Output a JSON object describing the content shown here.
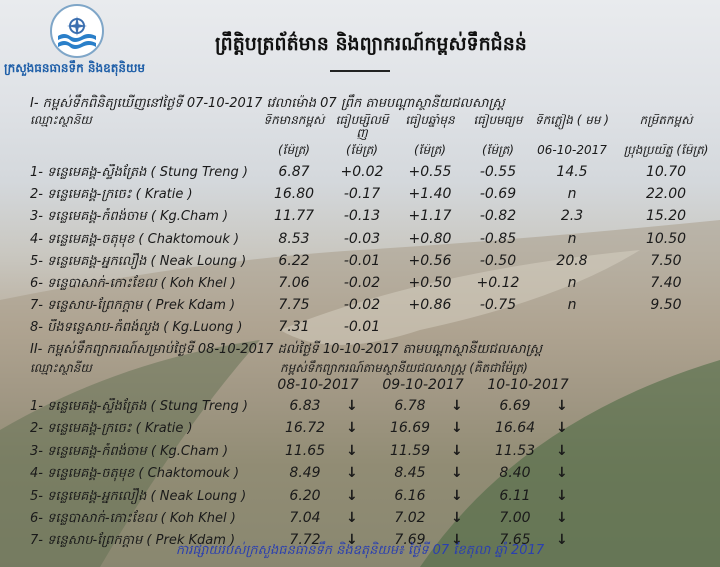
{
  "header": {
    "ministry": "ក្រសួងធនធានទឹក និងឧតុនិយម",
    "title": "ព្រឹត្តិបត្រព័ត៌មាន និងព្យាករណ៍កម្ពស់ទឹកជំនន់",
    "logo_icon": "ministry-water-logo"
  },
  "observed": {
    "heading": "I- កម្ពស់ទឹកពិនិត្យឃើញនៅថ្ងៃទី 07-10-2017 វេលាម៉ោង 07 ព្រឹក តាមបណ្តាស្ថានីយជលសាស្ត្រ",
    "columns": [
      {
        "label": "ឈ្មោះស្ថានីយ",
        "sub": ""
      },
      {
        "label": "ទឹកមានកម្ពស់",
        "sub": "(ម៉ែត្រ)"
      },
      {
        "label": "ធៀបម្សិលមិញ",
        "sub": "(ម៉ែត្រ)"
      },
      {
        "label": "ធៀបឆ្នាំមុន",
        "sub": "(ម៉ែត្រ)"
      },
      {
        "label": "ធៀបមធ្យម",
        "sub": "(ម៉ែត្រ)"
      },
      {
        "label": "ទឹកភ្លៀង ( មម )",
        "sub": "06-10-2017"
      },
      {
        "label": "កម្រិតកម្ពស់",
        "sub": "ប្រុងប្រយ័ត្ន (ម៉ែត្រ)"
      }
    ],
    "rows": [
      {
        "station": "1- ទន្លេមេគង្គ-ស្ទឹងត្រែង ( Stung Treng )",
        "level": "6.87",
        "vs_yesterday": "+0.02",
        "vs_last_year": "+0.55",
        "vs_average": "-0.55",
        "rainfall": "14.5",
        "alert": "10.70"
      },
      {
        "station": "2- ទន្លេមេគង្គ-ក្រចេះ ( Kratie )",
        "level": "16.80",
        "vs_yesterday": "-0.17",
        "vs_last_year": "+1.40",
        "vs_average": "-0.69",
        "rainfall": "n",
        "alert": "22.00"
      },
      {
        "station": "3- ទន្លេមេគង្គ-កំពង់ចាម ( Kg.Cham )",
        "level": "11.77",
        "vs_yesterday": "-0.13",
        "vs_last_year": "+1.17",
        "vs_average": "-0.82",
        "rainfall": "2.3",
        "alert": "15.20"
      },
      {
        "station": "4- ទន្លេមេគង្គ-ចតុមុខ ( Chaktomouk )",
        "level": "8.53",
        "vs_yesterday": "-0.03",
        "vs_last_year": "+0.80",
        "vs_average": "-0.85",
        "rainfall": "n",
        "alert": "10.50"
      },
      {
        "station": "5- ទន្លេមេគង្គ-អ្នកលឿង ( Neak Loung )",
        "level": "6.22",
        "vs_yesterday": "-0.01",
        "vs_last_year": "+0.56",
        "vs_average": "-0.50",
        "rainfall": "20.8",
        "alert": "7.50"
      },
      {
        "station": "6- ទន្លេបាសាក់-កោះខែល ( Koh Khel )",
        "level": "7.06",
        "vs_yesterday": "-0.02",
        "vs_last_year": "+0.50",
        "vs_average": "+0.12",
        "rainfall": "n",
        "alert": "7.40"
      },
      {
        "station": "7- ទន្លេសាប-ព្រែកក្តាម ( Prek Kdam )",
        "level": "7.75",
        "vs_yesterday": "-0.02",
        "vs_last_year": "+0.86",
        "vs_average": "-0.75",
        "rainfall": "n",
        "alert": "9.50"
      },
      {
        "station": "8- បឹងទន្លេសាប-កំពង់លួង ( Kg.Luong )",
        "level": "7.31",
        "vs_yesterday": "-0.01",
        "vs_last_year": "",
        "vs_average": "",
        "rainfall": "",
        "alert": ""
      }
    ]
  },
  "forecast": {
    "heading": "II- កម្ពស់ទឹកព្យាករណ៍សម្រាប់ថ្ងៃទី 08-10-2017 ដល់ថ្ងៃទី 10-10-2017 តាមបណ្តាស្ថានីយជលសាស្ត្រ",
    "station_label": "ឈ្មោះស្ថានីយ",
    "group_label": "កម្ពស់ទឹកព្យាករណ៍តាមស្ថានីយជលសាស្ត្រ (គិតជាម៉ែត្រ)",
    "dates": [
      "08-10-2017",
      "09-10-2017",
      "10-10-2017"
    ],
    "trend_icon": "arrow-down-icon",
    "rows": [
      {
        "station": "1- ទន្លេមេគង្គ-ស្ទឹងត្រែង ( Stung Treng )",
        "values": [
          "6.83",
          "6.78",
          "6.69"
        ]
      },
      {
        "station": "2- ទន្លេមេគង្គ-ក្រចេះ ( Kratie )",
        "values": [
          "16.72",
          "16.69",
          "16.64"
        ]
      },
      {
        "station": "3- ទន្លេមេគង្គ-កំពង់ចាម ( Kg.Cham )",
        "values": [
          "11.65",
          "11.59",
          "11.53"
        ]
      },
      {
        "station": "4- ទន្លេមេគង្គ-ចតុមុខ ( Chaktomouk )",
        "values": [
          "8.49",
          "8.45",
          "8.40"
        ]
      },
      {
        "station": "5- ទន្លេមេគង្គ-អ្នកលឿង ( Neak Loung )",
        "values": [
          "6.20",
          "6.16",
          "6.11"
        ]
      },
      {
        "station": "6- ទន្លេបាសាក់-កោះខែល ( Koh Khel )",
        "values": [
          "7.04",
          "7.02",
          "7.00"
        ]
      },
      {
        "station": "7- ទន្លេសាប-ព្រែកក្តាម ( Prek Kdam )",
        "values": [
          "7.72",
          "7.69",
          "7.65"
        ]
      }
    ]
  },
  "footer": "ការផ្សាយរបស់ក្រសួងធនធានទឹក និងឧតុនិយម៖ ថ្ងៃទី 07 ខែតុលា ឆ្នាំ 2017",
  "colors": {
    "ministry_blue": "#1f5fa8",
    "footer_blue": "#2a3fb0"
  }
}
